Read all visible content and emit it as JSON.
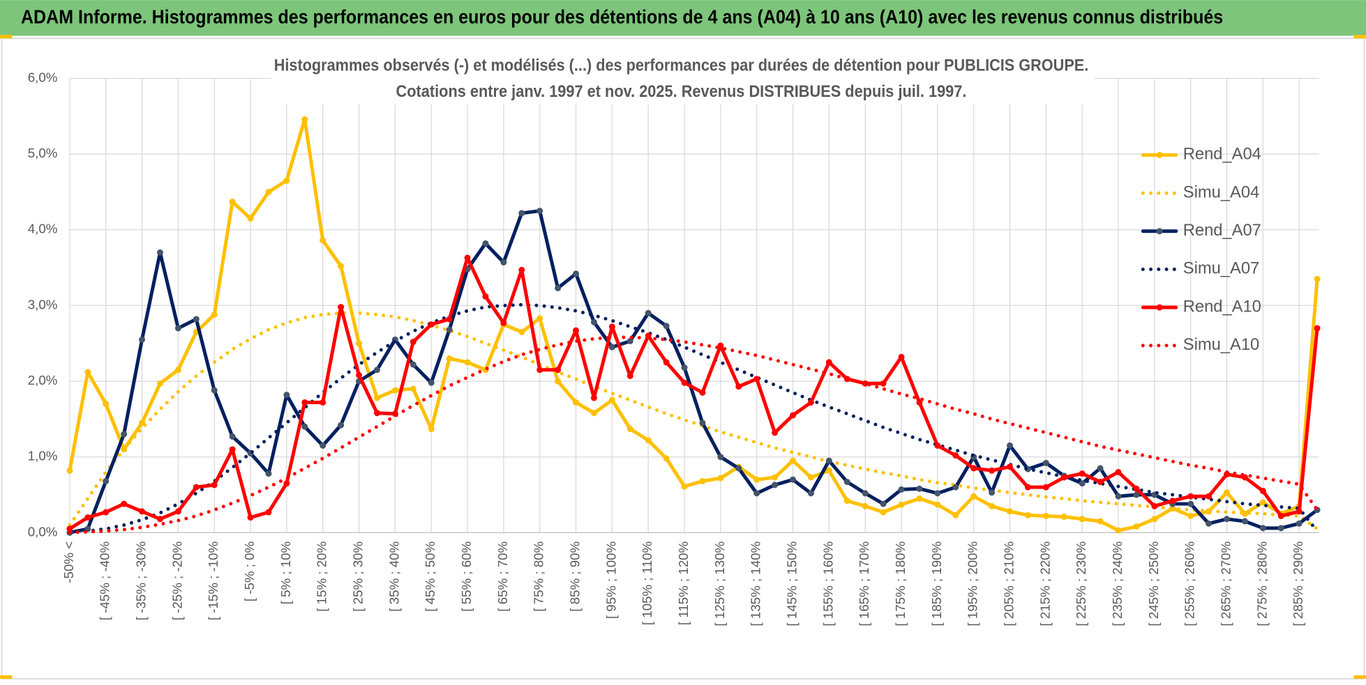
{
  "chart_data": {
    "type": "line",
    "banner": "ADAM Informe. Histogrammes des performances en euros pour des détentions de 4 ans (A04) à 10 ans (A10) avec les revenus connus distribués",
    "title": "Histogrammes observés (-) et modélisés (...) des performances par durées de détention pour PUBLICIS GROUPE.",
    "subtitle": "Cotations entre janv. 1997 et nov. 2025. Revenus DISTRIBUES depuis juil. 1997.",
    "categories": [
      "-50% <",
      null,
      "[ -45% ; -40%",
      null,
      "[ -35% ; -30%",
      null,
      "[ -25% ; -20%",
      null,
      "[ -15% ; -10%",
      null,
      "[ -5% ; 0%",
      null,
      "[ 5% ; 10%",
      null,
      "[ 15% ; 20%",
      null,
      "[ 25% ; 30%",
      null,
      "[ 35% ; 40%",
      null,
      "[ 45% ; 50%",
      null,
      "[ 55% ; 60%",
      null,
      "[ 65% ; 70%",
      null,
      "[ 75% ; 80%",
      null,
      "[ 85% ; 90%",
      null,
      "[ 95% ; 100%",
      null,
      "[ 105% ; 110%",
      null,
      "[ 115% ; 120%",
      null,
      "[ 125% ; 130%",
      null,
      "[ 135% ; 140%",
      null,
      "[ 145% ; 150%",
      null,
      "[ 155% ; 160%",
      null,
      "[ 165% ; 170%",
      null,
      "[ 175% ; 180%",
      null,
      "[ 185% ; 190%",
      null,
      "[ 195% ; 200%",
      null,
      "[ 205% ; 210%",
      null,
      "[ 215% ; 220%",
      null,
      "[ 225% ; 230%",
      null,
      "[ 235% ; 240%",
      null,
      "[ 245% ; 250%",
      null,
      "[ 255% ; 260%",
      null,
      "[ 265% ; 270%",
      null,
      "[ 275% ; 280%",
      null,
      "[ 285% ; 290%",
      null
    ],
    "series": [
      {
        "name": "Rend_A04",
        "color": "#ffc000",
        "marker_color": "#ffc000",
        "line_style": "solid",
        "values": [
          0.82,
          2.12,
          1.7,
          1.1,
          1.45,
          1.97,
          2.15,
          2.65,
          2.88,
          4.37,
          4.15,
          4.5,
          4.65,
          5.46,
          3.86,
          3.52,
          2.5,
          1.78,
          1.88,
          1.9,
          1.37,
          2.3,
          2.25,
          2.15,
          2.75,
          2.65,
          2.83,
          2.0,
          1.72,
          1.58,
          1.75,
          1.37,
          1.22,
          0.98,
          0.61,
          0.68,
          0.72,
          0.87,
          0.7,
          0.73,
          0.95,
          0.73,
          0.82,
          0.42,
          0.35,
          0.27,
          0.37,
          0.45,
          0.37,
          0.23,
          0.48,
          0.35,
          0.28,
          0.23,
          0.22,
          0.21,
          0.18,
          0.15,
          0.03,
          0.08,
          0.18,
          0.32,
          0.22,
          0.28,
          0.53,
          0.25,
          0.4,
          0.25,
          0.35,
          3.35
        ]
      },
      {
        "name": "Simu_A04",
        "color": "#ffc000",
        "line_style": "dotted",
        "values": [
          0.1,
          0.45,
          0.8,
          1.1,
          1.38,
          1.63,
          1.86,
          2.07,
          2.25,
          2.42,
          2.56,
          2.68,
          2.77,
          2.84,
          2.88,
          2.9,
          2.9,
          2.88,
          2.85,
          2.8,
          2.74,
          2.67,
          2.59,
          2.5,
          2.41,
          2.32,
          2.22,
          2.12,
          2.03,
          1.93,
          1.84,
          1.75,
          1.66,
          1.57,
          1.49,
          1.41,
          1.33,
          1.26,
          1.19,
          1.12,
          1.06,
          1.0,
          0.94,
          0.89,
          0.84,
          0.79,
          0.75,
          0.7,
          0.66,
          0.63,
          0.59,
          0.56,
          0.53,
          0.5,
          0.47,
          0.45,
          0.42,
          0.4,
          0.38,
          0.36,
          0.34,
          0.32,
          0.3,
          0.29,
          0.27,
          0.26,
          0.25,
          0.23,
          0.22,
          0.05
        ]
      },
      {
        "name": "Rend_A07",
        "color": "#002060",
        "marker_color": "#44546a",
        "line_style": "solid",
        "values": [
          0.0,
          0.05,
          0.68,
          1.3,
          2.55,
          3.7,
          2.7,
          2.82,
          1.88,
          1.27,
          1.05,
          0.78,
          1.82,
          1.4,
          1.15,
          1.42,
          2.0,
          2.15,
          2.55,
          2.22,
          1.98,
          2.68,
          3.48,
          3.82,
          3.57,
          4.22,
          4.25,
          3.23,
          3.42,
          2.78,
          2.45,
          2.53,
          2.9,
          2.73,
          2.18,
          1.45,
          1.0,
          0.85,
          0.52,
          0.63,
          0.7,
          0.52,
          0.95,
          0.67,
          0.52,
          0.38,
          0.57,
          0.58,
          0.52,
          0.6,
          1.0,
          0.53,
          1.15,
          0.84,
          0.92,
          0.75,
          0.65,
          0.85,
          0.48,
          0.5,
          0.5,
          0.38,
          0.38,
          0.12,
          0.18,
          0.15,
          0.06,
          0.06,
          0.12,
          0.3
        ]
      },
      {
        "name": "Simu_A07",
        "color": "#002060",
        "line_style": "dotted",
        "values": [
          0.0,
          0.02,
          0.05,
          0.1,
          0.17,
          0.26,
          0.38,
          0.52,
          0.68,
          0.86,
          1.05,
          1.25,
          1.45,
          1.65,
          1.85,
          2.04,
          2.22,
          2.38,
          2.53,
          2.66,
          2.77,
          2.86,
          2.93,
          2.98,
          3.0,
          3.01,
          3.0,
          2.97,
          2.93,
          2.87,
          2.8,
          2.72,
          2.64,
          2.55,
          2.45,
          2.35,
          2.25,
          2.15,
          2.05,
          1.95,
          1.85,
          1.75,
          1.66,
          1.57,
          1.48,
          1.39,
          1.31,
          1.23,
          1.16,
          1.09,
          1.02,
          0.96,
          0.9,
          0.84,
          0.79,
          0.74,
          0.69,
          0.65,
          0.61,
          0.57,
          0.53,
          0.5,
          0.47,
          0.44,
          0.41,
          0.38,
          0.36,
          0.34,
          0.32,
          0.02
        ]
      },
      {
        "name": "Rend_A10",
        "color": "#ff0000",
        "marker_color": "#ff0000",
        "line_style": "solid",
        "values": [
          0.05,
          0.2,
          0.27,
          0.38,
          0.28,
          0.18,
          0.28,
          0.6,
          0.63,
          1.1,
          0.2,
          0.27,
          0.65,
          1.72,
          1.72,
          2.98,
          2.08,
          1.58,
          1.57,
          2.52,
          2.75,
          2.82,
          3.63,
          3.12,
          2.77,
          3.47,
          2.15,
          2.15,
          2.67,
          1.78,
          2.72,
          2.07,
          2.6,
          2.25,
          1.98,
          1.85,
          2.47,
          1.93,
          2.03,
          1.32,
          1.55,
          1.72,
          2.25,
          2.03,
          1.97,
          1.97,
          2.32,
          1.72,
          1.15,
          1.02,
          0.85,
          0.82,
          0.87,
          0.6,
          0.6,
          0.73,
          0.78,
          0.67,
          0.8,
          0.58,
          0.35,
          0.42,
          0.48,
          0.48,
          0.77,
          0.73,
          0.55,
          0.22,
          0.28,
          2.7
        ]
      },
      {
        "name": "Simu_A10",
        "color": "#ff0000",
        "line_style": "dotted",
        "values": [
          0.0,
          0.01,
          0.02,
          0.04,
          0.07,
          0.11,
          0.16,
          0.22,
          0.3,
          0.39,
          0.49,
          0.6,
          0.72,
          0.85,
          0.98,
          1.12,
          1.26,
          1.4,
          1.54,
          1.68,
          1.81,
          1.94,
          2.05,
          2.16,
          2.26,
          2.35,
          2.42,
          2.48,
          2.53,
          2.56,
          2.58,
          2.58,
          2.57,
          2.55,
          2.52,
          2.48,
          2.44,
          2.39,
          2.34,
          2.28,
          2.22,
          2.16,
          2.1,
          2.03,
          1.97,
          1.9,
          1.83,
          1.77,
          1.7,
          1.63,
          1.57,
          1.5,
          1.44,
          1.38,
          1.32,
          1.26,
          1.2,
          1.14,
          1.09,
          1.04,
          0.99,
          0.94,
          0.89,
          0.85,
          0.8,
          0.76,
          0.72,
          0.68,
          0.64,
          0.3
        ]
      }
    ],
    "ylim": [
      0,
      6
    ],
    "yticks": [
      {
        "value": 0,
        "label": "0,0%"
      },
      {
        "value": 1,
        "label": "1,0%"
      },
      {
        "value": 2,
        "label": "2,0%"
      },
      {
        "value": 3,
        "label": "3,0%"
      },
      {
        "value": 4,
        "label": "4,0%"
      },
      {
        "value": 5,
        "label": "5,0%"
      },
      {
        "value": 6,
        "label": "6,0%"
      }
    ],
    "grid": true,
    "legend": "right"
  }
}
